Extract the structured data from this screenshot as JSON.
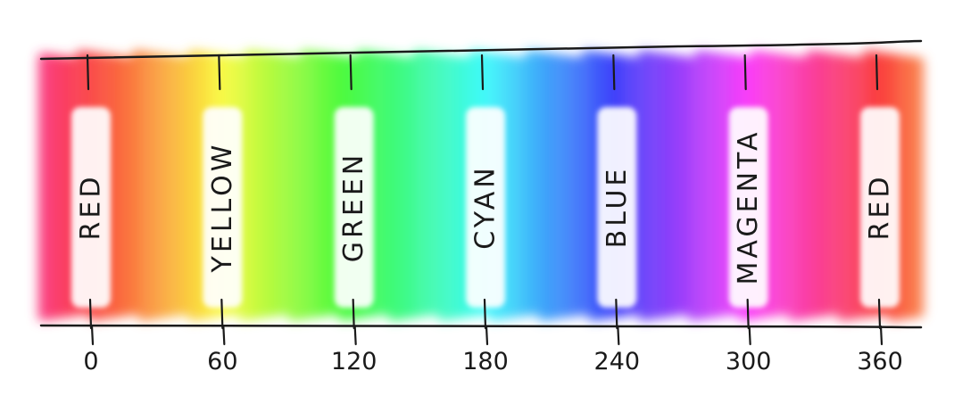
{
  "diagram": {
    "hue_scale": {
      "min": 0,
      "max": 360,
      "ticks": [
        {
          "value": 0,
          "label": "0",
          "name": "RED"
        },
        {
          "value": 60,
          "label": "60",
          "name": "YELLOW"
        },
        {
          "value": 120,
          "label": "120",
          "name": "GREEN"
        },
        {
          "value": 180,
          "label": "180",
          "name": "CYAN"
        },
        {
          "value": 240,
          "label": "240",
          "name": "BLUE"
        },
        {
          "value": 300,
          "label": "300",
          "name": "MAGENTA"
        },
        {
          "value": 360,
          "label": "360",
          "name": "RED"
        }
      ]
    },
    "colors": {
      "red": "#ff4a4a",
      "yellow": "#eef23a",
      "green": "#3ff23a",
      "cyan": "#3ad6f5",
      "blue": "#4655f0",
      "magenta": "#f53af0",
      "outline": "#1a1a1a"
    }
  }
}
